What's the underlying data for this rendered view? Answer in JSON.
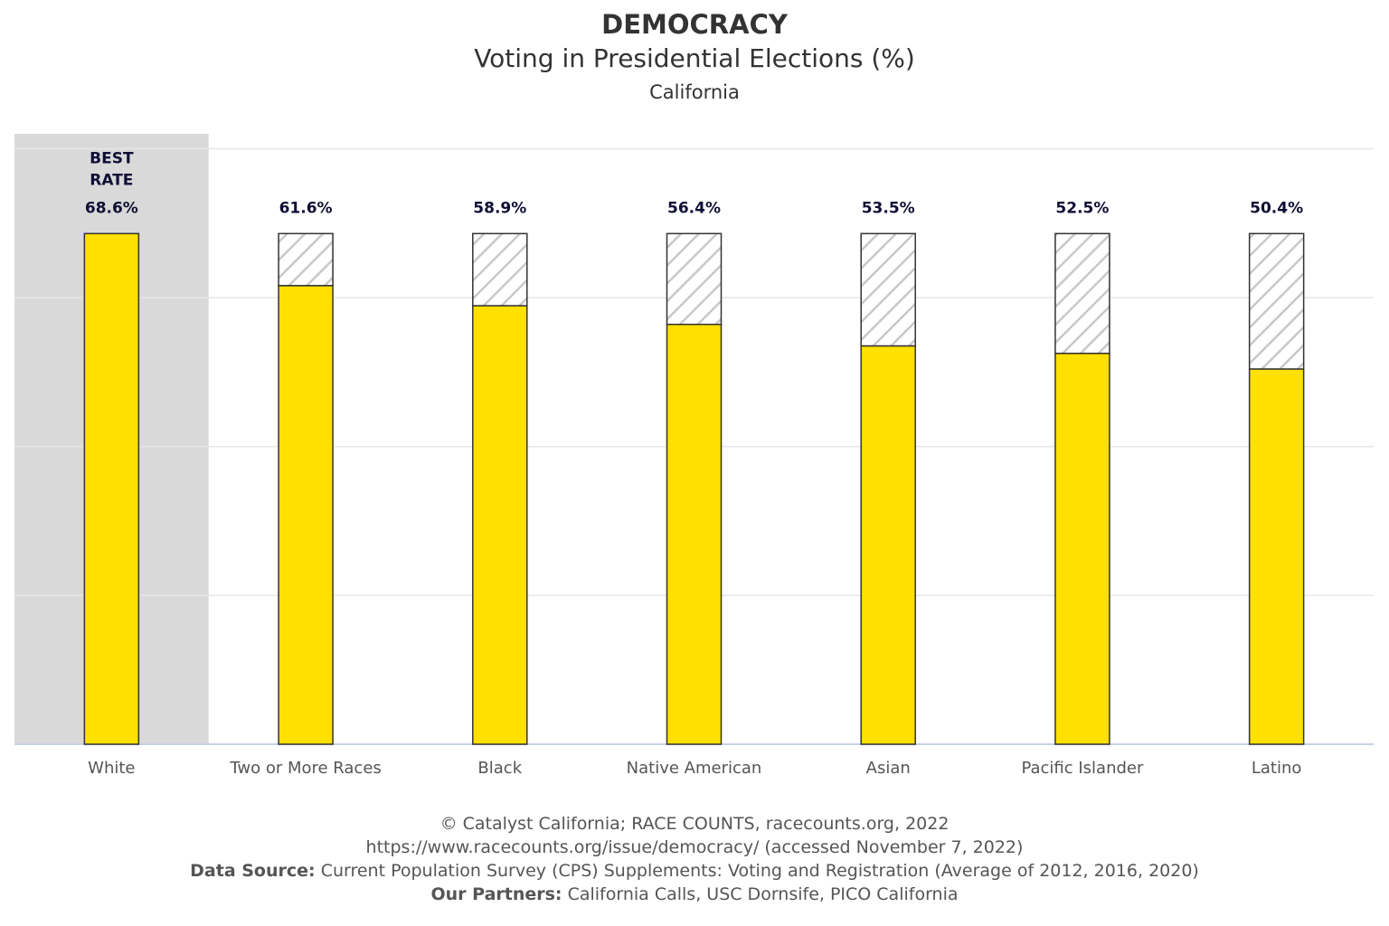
{
  "header": {
    "title": "DEMOCRACY",
    "subtitle": "Voting in Presidential Elections (%)",
    "geography": "California"
  },
  "chart_data": {
    "type": "bar",
    "title": "DEMOCRACY",
    "subtitle": "Voting in Presidential Elections (%)",
    "geography": "California",
    "categories": [
      "White",
      "Two or More Races",
      "Black",
      "Native American",
      "Asian",
      "Pacific Islander",
      "Latino"
    ],
    "values": [
      68.6,
      61.6,
      58.9,
      56.4,
      53.5,
      52.5,
      50.4
    ],
    "data_labels": [
      "68.6%",
      "61.6%",
      "58.9%",
      "56.4%",
      "53.5%",
      "52.5%",
      "50.4%"
    ],
    "best_rate_label": "BEST RATE",
    "best_category": "White",
    "gap_to_best": "hatched",
    "ylim": [
      0,
      82
    ],
    "gridlines": [
      20,
      40,
      60,
      80
    ],
    "xlabel": "",
    "ylabel": "",
    "colors": {
      "bar": "#FFE000",
      "bar_border": "#333333",
      "best_highlight": "#D9D9D9",
      "hatch": "#C8C8C8",
      "grid": "#E6E6E6",
      "axis": "#C6D3E4",
      "label": "#0E0E35"
    }
  },
  "footer": {
    "copyright": "© Catalyst California; RACE COUNTS, racecounts.org, 2022",
    "url_line": "https://www.racecounts.org/issue/democracy/ (accessed November 7, 2022)",
    "source_label": "Data Source:",
    "source_text": "Current Population Survey (CPS) Supplements: Voting and Registration (Average of 2012, 2016, 2020)",
    "partners_label": "Our Partners:",
    "partners_text": "California Calls, USC Dornsife, PICO California"
  }
}
